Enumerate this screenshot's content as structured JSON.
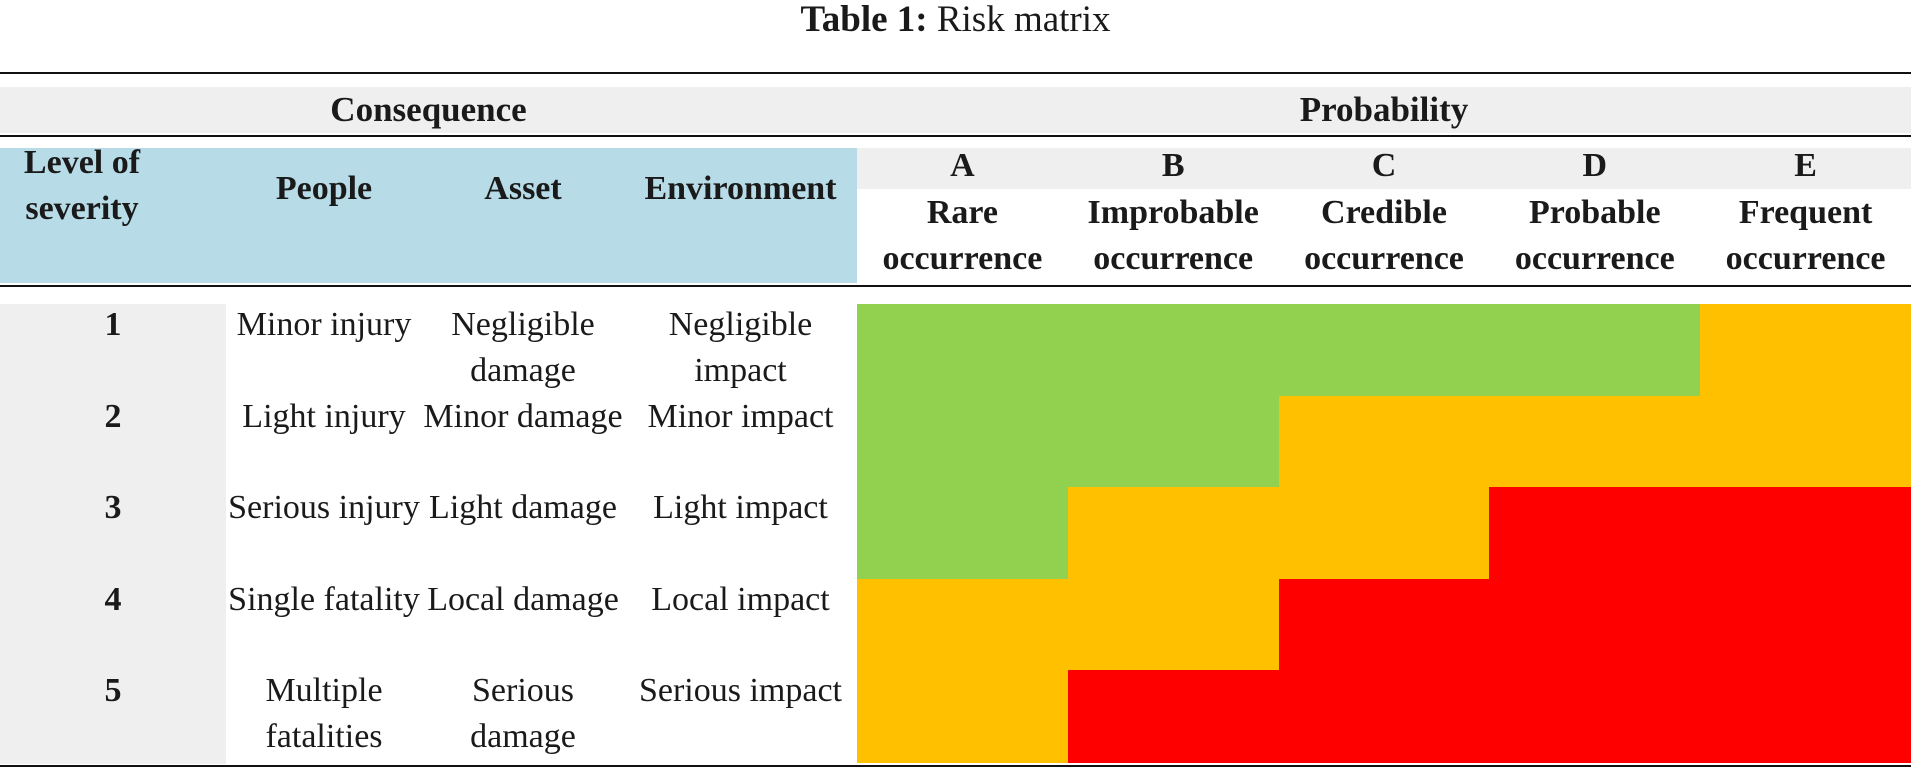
{
  "caption": {
    "label": "Table 1:",
    "text": "Risk matrix"
  },
  "groups": {
    "consequence": "Consequence",
    "probability": "Probability"
  },
  "headers": {
    "severity": "Level of severity",
    "people": "People",
    "asset": "Asset",
    "environment": "Environment"
  },
  "probability": [
    {
      "code": "A",
      "label": "Rare occurrence"
    },
    {
      "code": "B",
      "label": "Improbable occurrence"
    },
    {
      "code": "C",
      "label": "Credible occurrence"
    },
    {
      "code": "D",
      "label": "Probable occurrence"
    },
    {
      "code": "E",
      "label": "Frequent occurrence"
    }
  ],
  "rows": [
    {
      "level": "1",
      "people": "Minor injury",
      "asset": "Negligible damage",
      "environment": "Negligible impact",
      "risk": [
        "green",
        "green",
        "green",
        "green",
        "amber"
      ]
    },
    {
      "level": "2",
      "people": "Light injury",
      "asset": "Minor damage",
      "environment": "Minor impact",
      "risk": [
        "green",
        "green",
        "amber",
        "amber",
        "amber"
      ]
    },
    {
      "level": "3",
      "people": "Serious injury",
      "asset": "Light damage",
      "environment": "Light impact",
      "risk": [
        "green",
        "amber",
        "amber",
        "red",
        "red"
      ]
    },
    {
      "level": "4",
      "people": "Single fatality",
      "asset": "Local damage",
      "environment": "Local impact",
      "risk": [
        "amber",
        "amber",
        "red",
        "red",
        "red"
      ]
    },
    {
      "level": "5",
      "people": "Multiple fatalities",
      "asset": "Serious damage",
      "environment": "Serious impact",
      "risk": [
        "amber",
        "red",
        "red",
        "red",
        "red"
      ]
    }
  ],
  "colors": {
    "green": "#92d050",
    "amber": "#ffc000",
    "red": "#ff0000",
    "header_blue": "#b7dce7",
    "band_grey": "#efefef"
  }
}
